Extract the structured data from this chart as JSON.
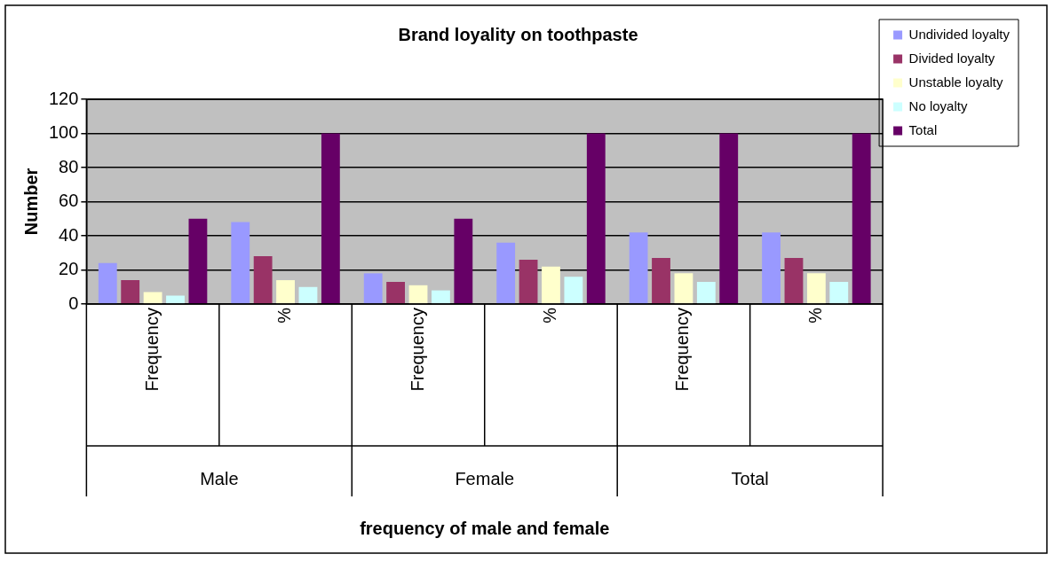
{
  "chart_data": {
    "type": "bar",
    "title": "Brand loyality on toothpaste",
    "ylabel": "Number",
    "categories": [
      "Frequency",
      "%",
      "Frequency",
      "%",
      "Frequency",
      "%"
    ],
    "annotations": [
      "Male",
      "Female",
      "Total",
      "frequency of male and female"
    ],
    "series": [
      {
        "name": "Undivided loyalty",
        "color": "#9999ff",
        "values": [
          24,
          48,
          18,
          36,
          42,
          42
        ]
      },
      {
        "name": "Divided loyalty",
        "color": "#993366",
        "values": [
          14,
          28,
          13,
          26,
          27,
          27
        ]
      },
      {
        "name": "Unstable loyalty",
        "color": "#ffffcc",
        "values": [
          7,
          14,
          11,
          22,
          18,
          18
        ]
      },
      {
        "name": "No loyalty",
        "color": "#ccffff",
        "values": [
          5,
          10,
          8,
          16,
          13,
          13
        ]
      },
      {
        "name": "Total",
        "color": "#660066",
        "values": [
          50,
          100,
          50,
          100,
          100,
          100
        ]
      }
    ],
    "ylim": [
      0,
      120
    ],
    "yticks": [
      0,
      20,
      40,
      60,
      80,
      100,
      120
    ],
    "grid": "y",
    "legend": "right"
  }
}
